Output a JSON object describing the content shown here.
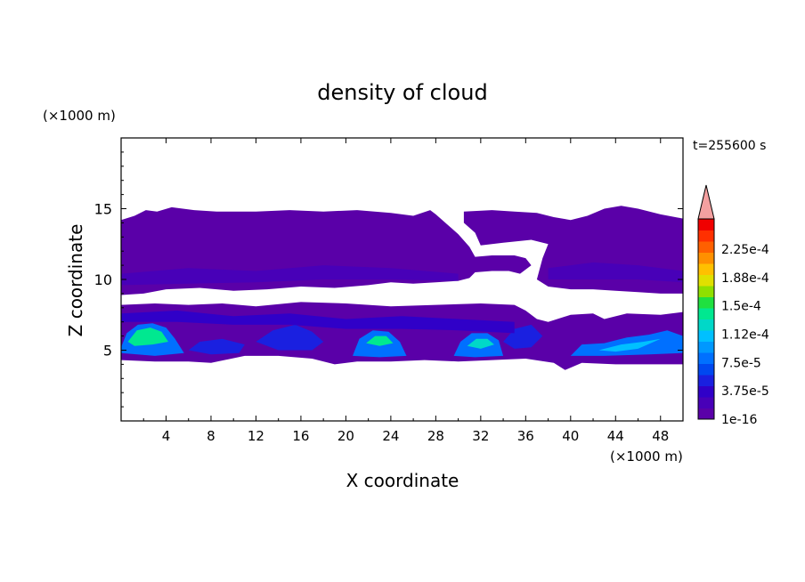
{
  "chart_data": {
    "type": "heatmap",
    "title": "density of cloud",
    "xlabel": "X coordinate",
    "ylabel": "Z coordinate",
    "x_unit_label": "(×1000 m)",
    "y_unit_label": "(×1000 m)",
    "time_label": "t=255600 s",
    "xlim": [
      0,
      50
    ],
    "ylim": [
      0,
      20
    ],
    "x_ticks": [
      "4",
      "8",
      "12",
      "16",
      "20",
      "24",
      "28",
      "32",
      "36",
      "40",
      "44",
      "48"
    ],
    "y_ticks": [
      "5",
      "10",
      "15"
    ],
    "colorbar": {
      "labels": [
        "1e-16",
        "3.75e-5",
        "7.5e-5",
        "1.12e-4",
        "1.5e-4",
        "1.88e-4",
        "2.25e-4"
      ],
      "colors": [
        "#5a00a8",
        "#4800b8",
        "#3000c8",
        "#1a20e0",
        "#0048f0",
        "#0070ff",
        "#0098ff",
        "#00c0ff",
        "#00d8c8",
        "#00e890",
        "#20e040",
        "#90e000",
        "#e0e000",
        "#ffc000",
        "#ff9000",
        "#ff6000",
        "#ff3000",
        "#f00000"
      ],
      "over_color": "#f4a0a0"
    },
    "cloud_regions": [
      {
        "name": "upper-anvil",
        "level": 0,
        "outline": [
          [
            0,
            14.2
          ],
          [
            1.2,
            14.5
          ],
          [
            2.2,
            14.9
          ],
          [
            3.2,
            14.8
          ],
          [
            4.5,
            15.1
          ],
          [
            6.5,
            14.9
          ],
          [
            8.5,
            14.8
          ],
          [
            12,
            14.8
          ],
          [
            15,
            14.9
          ],
          [
            18,
            14.8
          ],
          [
            21,
            14.9
          ],
          [
            24,
            14.7
          ],
          [
            26,
            14.5
          ],
          [
            27.5,
            14.9
          ],
          [
            28,
            14.6
          ],
          [
            29,
            13.9
          ],
          [
            30,
            13.2
          ],
          [
            31,
            12.3
          ],
          [
            31.5,
            11.6
          ],
          [
            33,
            11.7
          ],
          [
            35,
            11.7
          ],
          [
            36,
            11.5
          ],
          [
            36.5,
            11.0
          ],
          [
            35.5,
            10.4
          ],
          [
            34.5,
            10.6
          ],
          [
            33,
            10.6
          ],
          [
            31.5,
            10.5
          ],
          [
            31,
            10.1
          ],
          [
            30,
            9.9
          ],
          [
            28,
            9.8
          ],
          [
            26,
            9.7
          ],
          [
            24,
            9.8
          ],
          [
            22,
            9.6
          ],
          [
            19,
            9.4
          ],
          [
            16,
            9.5
          ],
          [
            13,
            9.3
          ],
          [
            10,
            9.2
          ],
          [
            7,
            9.4
          ],
          [
            4,
            9.3
          ],
          [
            2,
            9.0
          ],
          [
            0,
            8.9
          ]
        ]
      },
      {
        "name": "upper-anvil-right",
        "level": 0,
        "outline": [
          [
            30.5,
            14.8
          ],
          [
            33,
            14.9
          ],
          [
            35,
            14.8
          ],
          [
            37,
            14.7
          ],
          [
            38.5,
            14.4
          ],
          [
            40,
            14.2
          ],
          [
            41.5,
            14.5
          ],
          [
            43,
            15.0
          ],
          [
            44.5,
            15.2
          ],
          [
            46,
            15.0
          ],
          [
            48,
            14.6
          ],
          [
            50,
            14.3
          ],
          [
            50,
            9.0
          ],
          [
            48,
            9.0
          ],
          [
            46,
            9.1
          ],
          [
            44,
            9.2
          ],
          [
            42,
            9.3
          ],
          [
            40,
            9.3
          ],
          [
            38,
            9.5
          ],
          [
            37,
            10.0
          ],
          [
            37.5,
            11.5
          ],
          [
            38,
            12.5
          ],
          [
            36.5,
            12.8
          ],
          [
            34,
            12.6
          ],
          [
            32,
            12.4
          ],
          [
            31.5,
            13.3
          ],
          [
            30.5,
            14.0
          ]
        ]
      },
      {
        "name": "lower-band",
        "level": 0,
        "outline": [
          [
            0,
            8.2
          ],
          [
            3,
            8.3
          ],
          [
            6,
            8.2
          ],
          [
            9,
            8.3
          ],
          [
            12,
            8.1
          ],
          [
            16,
            8.4
          ],
          [
            20,
            8.3
          ],
          [
            24,
            8.1
          ],
          [
            28,
            8.2
          ],
          [
            32,
            8.3
          ],
          [
            35,
            8.2
          ],
          [
            36,
            7.8
          ],
          [
            37,
            7.2
          ],
          [
            38,
            7.0
          ],
          [
            40,
            7.5
          ],
          [
            42,
            7.6
          ],
          [
            43,
            7.2
          ],
          [
            45,
            7.6
          ],
          [
            48,
            7.5
          ],
          [
            50,
            7.7
          ],
          [
            50,
            4.0
          ],
          [
            47,
            4.0
          ],
          [
            44,
            4.0
          ],
          [
            41,
            4.1
          ],
          [
            39.5,
            3.6
          ],
          [
            38.5,
            4.1
          ],
          [
            36,
            4.4
          ],
          [
            33,
            4.3
          ],
          [
            30,
            4.2
          ],
          [
            27,
            4.3
          ],
          [
            24,
            4.2
          ],
          [
            21,
            4.2
          ],
          [
            19,
            4.0
          ],
          [
            17,
            4.4
          ],
          [
            14,
            4.6
          ],
          [
            11,
            4.6
          ],
          [
            8,
            4.1
          ],
          [
            6,
            4.2
          ],
          [
            3,
            4.2
          ],
          [
            0,
            4.3
          ]
        ]
      },
      {
        "name": "core-1",
        "level": 5,
        "outline": [
          [
            0,
            5.2
          ],
          [
            0.5,
            6.2
          ],
          [
            1.5,
            6.8
          ],
          [
            2.8,
            6.9
          ],
          [
            4,
            6.6
          ],
          [
            4.8,
            5.8
          ],
          [
            5.6,
            4.8
          ],
          [
            3,
            4.6
          ],
          [
            0,
            4.8
          ]
        ]
      },
      {
        "name": "core-1-inner",
        "level": 9,
        "outline": [
          [
            0.6,
            5.6
          ],
          [
            1.4,
            6.4
          ],
          [
            2.6,
            6.6
          ],
          [
            3.6,
            6.3
          ],
          [
            4.2,
            5.6
          ],
          [
            2.8,
            5.4
          ],
          [
            1.2,
            5.3
          ]
        ]
      },
      {
        "name": "core-2",
        "level": 5,
        "outline": [
          [
            20.6,
            4.6
          ],
          [
            21.2,
            5.8
          ],
          [
            22.4,
            6.4
          ],
          [
            23.8,
            6.3
          ],
          [
            24.8,
            5.6
          ],
          [
            25.4,
            4.6
          ],
          [
            23,
            4.5
          ]
        ]
      },
      {
        "name": "core-2-inner",
        "level": 9,
        "outline": [
          [
            21.8,
            5.5
          ],
          [
            22.6,
            6.0
          ],
          [
            23.6,
            6.0
          ],
          [
            24.2,
            5.5
          ],
          [
            23,
            5.3
          ]
        ]
      },
      {
        "name": "core-3",
        "level": 5,
        "outline": [
          [
            29.6,
            4.6
          ],
          [
            30.2,
            5.6
          ],
          [
            31.2,
            6.2
          ],
          [
            32.6,
            6.2
          ],
          [
            33.6,
            5.7
          ],
          [
            34,
            4.6
          ],
          [
            31.5,
            4.5
          ]
        ]
      },
      {
        "name": "core-3-inner",
        "level": 8,
        "outline": [
          [
            30.8,
            5.3
          ],
          [
            31.6,
            5.8
          ],
          [
            32.6,
            5.8
          ],
          [
            33.2,
            5.4
          ],
          [
            32,
            5.1
          ]
        ]
      },
      {
        "name": "core-4",
        "level": 5,
        "outline": [
          [
            40,
            4.6
          ],
          [
            41,
            5.4
          ],
          [
            43,
            5.5
          ],
          [
            45,
            5.9
          ],
          [
            47,
            6.1
          ],
          [
            48.6,
            6.4
          ],
          [
            50,
            6.0
          ],
          [
            50,
            4.8
          ],
          [
            47,
            4.7
          ],
          [
            43,
            4.6
          ]
        ]
      },
      {
        "name": "core-4-inner",
        "level": 7,
        "outline": [
          [
            42.5,
            5.0
          ],
          [
            44.5,
            5.4
          ],
          [
            46.5,
            5.6
          ],
          [
            48,
            5.8
          ],
          [
            46,
            5.1
          ],
          [
            44,
            4.9
          ]
        ]
      },
      {
        "name": "mid-blob-a",
        "level": 3,
        "outline": [
          [
            6,
            5.0
          ],
          [
            7,
            5.6
          ],
          [
            9,
            5.8
          ],
          [
            11,
            5.4
          ],
          [
            10.5,
            4.8
          ],
          [
            8,
            4.7
          ]
        ]
      },
      {
        "name": "mid-blob-b",
        "level": 3,
        "outline": [
          [
            12,
            5.6
          ],
          [
            13.5,
            6.4
          ],
          [
            15.5,
            6.8
          ],
          [
            17,
            6.3
          ],
          [
            18,
            5.6
          ],
          [
            17,
            5.0
          ],
          [
            14,
            5.0
          ]
        ]
      },
      {
        "name": "mid-blob-c",
        "level": 3,
        "outline": [
          [
            34,
            5.6
          ],
          [
            35,
            6.5
          ],
          [
            36.5,
            6.8
          ],
          [
            37.5,
            6.0
          ],
          [
            36.5,
            5.2
          ],
          [
            35,
            5.1
          ]
        ]
      },
      {
        "name": "mid-band-upper",
        "level": 2,
        "outline": [
          [
            0,
            7.6
          ],
          [
            5,
            7.8
          ],
          [
            10,
            7.4
          ],
          [
            15,
            7.6
          ],
          [
            20,
            7.2
          ],
          [
            25,
            7.4
          ],
          [
            30,
            7.2
          ],
          [
            35,
            7.0
          ],
          [
            35,
            6.2
          ],
          [
            30,
            6.4
          ],
          [
            25,
            6.5
          ],
          [
            20,
            6.5
          ],
          [
            15,
            6.8
          ],
          [
            10,
            6.8
          ],
          [
            5,
            7.0
          ],
          [
            0,
            7.0
          ]
        ]
      },
      {
        "name": "upper-layer-mid",
        "level": 1,
        "outline": [
          [
            0,
            10.4
          ],
          [
            6,
            10.8
          ],
          [
            12,
            10.6
          ],
          [
            18,
            11.0
          ],
          [
            24,
            10.8
          ],
          [
            30,
            10.4
          ],
          [
            30,
            9.9
          ],
          [
            24,
            10.0
          ],
          [
            18,
            10.0
          ],
          [
            12,
            9.8
          ],
          [
            6,
            9.7
          ],
          [
            0,
            9.6
          ]
        ]
      },
      {
        "name": "upper-layer-right",
        "level": 1,
        "outline": [
          [
            38,
            10.8
          ],
          [
            42,
            11.2
          ],
          [
            46,
            11.0
          ],
          [
            50,
            10.6
          ],
          [
            50,
            9.8
          ],
          [
            46,
            10.0
          ],
          [
            42,
            10.0
          ],
          [
            38,
            10.0
          ]
        ]
      }
    ]
  }
}
